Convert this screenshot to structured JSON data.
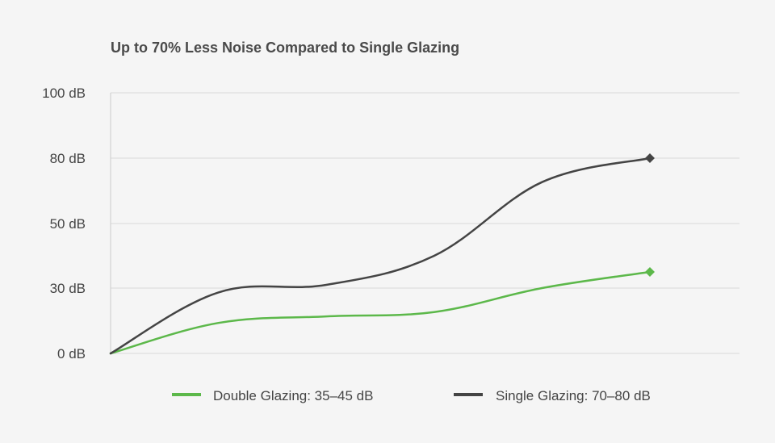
{
  "chart_data": {
    "type": "line",
    "title": "Up to 70% Less Noise Compared to Single Glazing",
    "xlabel": "",
    "ylabel": "",
    "y_ticks": [
      {
        "value": 0,
        "label": "0 dB"
      },
      {
        "value": 30,
        "label": "30 dB"
      },
      {
        "value": 50,
        "label": "50 dB"
      },
      {
        "value": 80,
        "label": "80 dB"
      },
      {
        "value": 100,
        "label": "100 dB"
      }
    ],
    "x": [
      0,
      1,
      2,
      3,
      4,
      5
    ],
    "series": [
      {
        "name": "Double Glazing",
        "legend": "Double Glazing: 35–45 dB",
        "color": "#5cb84a",
        "values": [
          0,
          14,
          17,
          19,
          30,
          35
        ],
        "end_marker": 35
      },
      {
        "name": "Single Glazing",
        "legend": "Single Glazing: 70–80 dB",
        "color": "#444444",
        "values": [
          0,
          28,
          31,
          40,
          69,
          80
        ],
        "end_marker": 80
      }
    ],
    "legend_position": "bottom-center",
    "grid": true
  }
}
